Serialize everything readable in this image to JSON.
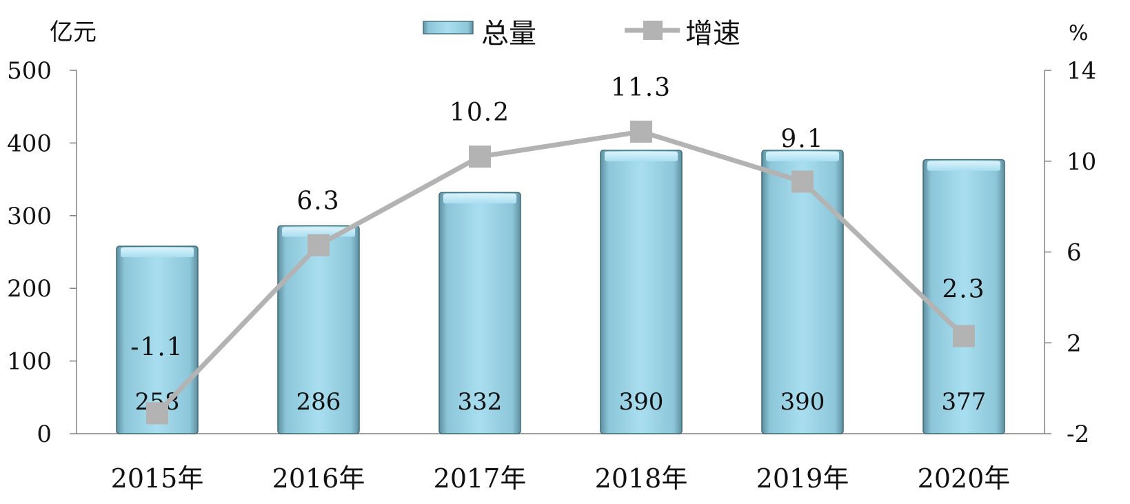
{
  "chart_data": {
    "type": "bar",
    "categories": [
      "2015年",
      "2016年",
      "2017年",
      "2018年",
      "2019年",
      "2020年"
    ],
    "series": [
      {
        "name": "总量",
        "type": "bar",
        "axis": "left",
        "values": [
          258,
          286,
          332,
          390,
          390,
          377
        ],
        "color": "#a6dcee"
      },
      {
        "name": "增速",
        "type": "line",
        "axis": "right",
        "values": [
          -1.1,
          6.3,
          10.2,
          11.3,
          9.1,
          2.3
        ],
        "color": "#b3b3b3"
      }
    ],
    "bar_labels": [
      "258",
      "286",
      "332",
      "390",
      "390",
      "377"
    ],
    "line_labels": [
      "-1.1",
      "6.3",
      "10.2",
      "11.3",
      "9.1",
      "2.3"
    ],
    "left_axis": {
      "unit": "亿元",
      "ylim": [
        0,
        500
      ],
      "ticks": [
        "0",
        "100",
        "200",
        "300",
        "400",
        "500"
      ]
    },
    "right_axis": {
      "unit": "%",
      "ylim": [
        -2,
        14
      ],
      "ticks": [
        "-2",
        "2",
        "6",
        "10",
        "14"
      ]
    },
    "legend": {
      "position": "top-center",
      "items": [
        "总量",
        "增速"
      ]
    },
    "grid": false
  }
}
